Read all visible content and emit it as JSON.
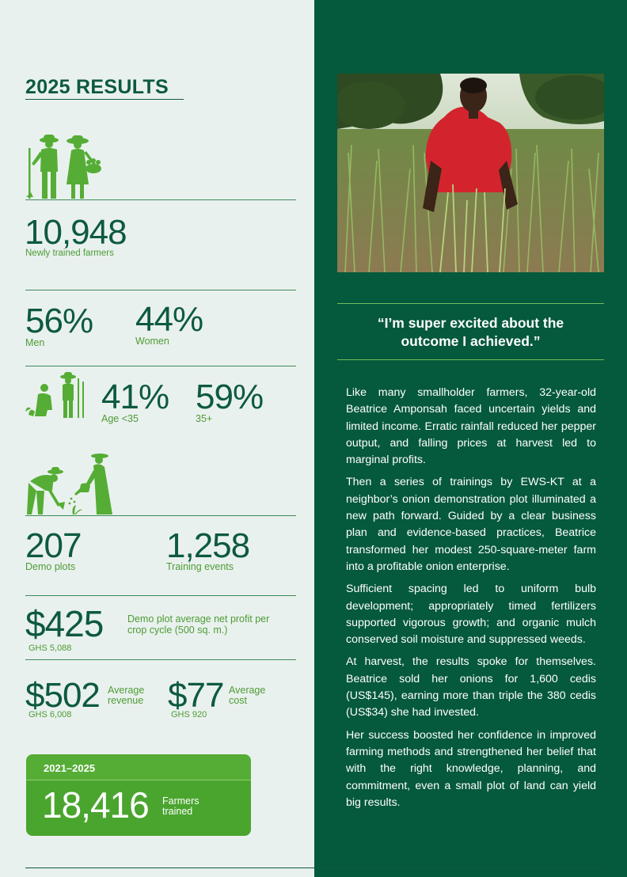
{
  "results": {
    "title": "2025 RESULTS",
    "farmers_trained_value": "10,948",
    "farmers_trained_label": "Newly trained farmers",
    "men_value": "56%",
    "men_label": "Men",
    "women_value": "44%",
    "women_label": "Women",
    "age_under_value": "41%",
    "age_under_label": "Age <35",
    "age_over_value": "59%",
    "age_over_label": "35+",
    "demo_plots_value": "207",
    "demo_plots_label": "Demo plots",
    "training_events_value": "1,258",
    "training_events_label": "Training events",
    "profit_value": "$425",
    "profit_label": "Demo plot average net profit per crop cycle (500 sq. m.)",
    "profit_ghs": "GHS 5,088",
    "revenue_value": "$502",
    "revenue_label_1": "Average",
    "revenue_label_2": "revenue",
    "revenue_ghs": "GHS 6,008",
    "cost_value": "$77",
    "cost_label_1": "Average",
    "cost_label_2": "cost",
    "cost_ghs": "GHS 920"
  },
  "cumulative": {
    "years": "2021–2025",
    "value": "18,416",
    "label_1": "Farmers",
    "label_2": "trained"
  },
  "story": {
    "quote_line_1": "“I’m super excited about the",
    "quote_line_2": "outcome I achieved.”",
    "paragraphs": [
      "Like many smallholder farmers, 32-year-old Beatrice Amponsah faced uncertain yields and limited income. Erratic rainfall reduced her pepper output, and falling prices at harvest led to marginal profits.",
      "Then a series of trainings by EWS-KT at a neighbor’s onion demonstration plot illuminated a new path forward. Guided by a clear business plan and evidence-based practices, Beatrice transformed her modest 250-square-meter farm into a profitable onion enterprise.",
      "Sufficient spacing led to uniform bulb development; appropriately timed fertilizers supported vigorous growth; and organic mulch conserved soil moisture and suppressed weeds.",
      "At harvest, the results spoke for themselves. Beatrice sold her onions for 1,600 cedis (US$145), earning more than triple the 380 cedis (US$34) she had invested.",
      "Her success boosted her confidence in improved farming methods and strengthened her belief that with the right knowledge, planning, and commitment, even a small plot of land can yield big results."
    ]
  },
  "colors": {
    "dark_green": "#05593c",
    "accent_green": "#4e9b36",
    "light_bg": "#e9f1ee"
  }
}
